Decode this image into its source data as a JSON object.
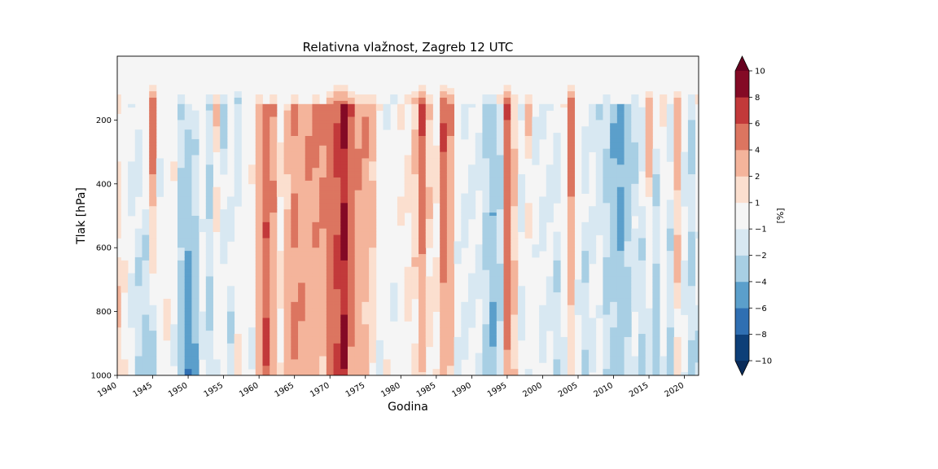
{
  "chart_data": {
    "type": "heatmap",
    "subtype": "filled-contour",
    "title": "Relativna vlažnost, Zagreb 12 UTC",
    "xlabel": "Godina",
    "ylabel": "Tlak [hPa]",
    "xlim": [
      1940,
      2022
    ],
    "ylim": [
      1000,
      0
    ],
    "y_inverted": true,
    "x_ticks": [
      "1940",
      "1945",
      "1950",
      "1955",
      "1960",
      "1965",
      "1970",
      "1975",
      "1980",
      "1985",
      "1990",
      "1995",
      "2000",
      "2005",
      "2010",
      "2015",
      "2020"
    ],
    "y_ticks": [
      "200",
      "400",
      "600",
      "800",
      "1000"
    ],
    "colorbar": {
      "label": "[%]",
      "levels": [
        -10,
        -8,
        -6,
        -4,
        -2,
        -1,
        1,
        2,
        4,
        6,
        8,
        10
      ],
      "tick_labels": [
        "−10",
        "−8",
        "−6",
        "−4",
        "−2",
        "−1",
        "1",
        "2",
        "4",
        "6",
        "8",
        "10"
      ],
      "colors": [
        "#0d3f78",
        "#2f6fb2",
        "#5b9fcb",
        "#a8cfe4",
        "#d8e8f2",
        "#f5f5f5",
        "#fbdfcf",
        "#f4b49b",
        "#dc7560",
        "#c2393a",
        "#840a25"
      ],
      "extend": "both",
      "under_color": "#0a2c5a",
      "over_color": "#67001f"
    },
    "upper_level_hpa": 150,
    "data_top_hpa": 50,
    "years": [
      1940,
      1941,
      1942,
      1943,
      1944,
      1945,
      1946,
      1947,
      1948,
      1949,
      1950,
      1951,
      1952,
      1953,
      1954,
      1955,
      1956,
      1957,
      1958,
      1959,
      1960,
      1961,
      1962,
      1963,
      1964,
      1965,
      1966,
      1967,
      1968,
      1969,
      1970,
      1971,
      1972,
      1973,
      1974,
      1975,
      1976,
      1977,
      1978,
      1979,
      1980,
      1981,
      1982,
      1983,
      1984,
      1985,
      1986,
      1987,
      1988,
      1989,
      1990,
      1991,
      1992,
      1993,
      1994,
      1995,
      1996,
      1997,
      1998,
      1999,
      2000,
      2001,
      2002,
      2003,
      2004,
      2005,
      2006,
      2007,
      2008,
      2009,
      2010,
      2011,
      2012,
      2013,
      2014,
      2015,
      2016,
      2017,
      2018,
      2019,
      2020,
      2021,
      2022
    ],
    "low_level_anomaly": [
      2,
      1,
      -1,
      -2,
      -3,
      -3,
      0,
      1,
      -1,
      -3,
      -6,
      -4,
      -1,
      -2,
      -1,
      0,
      -2,
      1,
      0,
      -1,
      3,
      6,
      3,
      1,
      3,
      4,
      4,
      3,
      2,
      2,
      5,
      6,
      8,
      4,
      3,
      2,
      1,
      -1,
      1,
      -1,
      0,
      1,
      1,
      2,
      1,
      1,
      3,
      2,
      -1,
      -1,
      -1,
      -1,
      -2,
      -4,
      -2,
      4,
      2,
      -1,
      -1,
      0,
      -1,
      -1,
      -2,
      -1,
      1,
      -1,
      -2,
      -1,
      0,
      -2,
      -2,
      -3,
      -2,
      -1,
      -2,
      -2,
      -3,
      -1,
      -2,
      1,
      -1,
      -2,
      -2
    ],
    "high_level_anomaly": [
      1,
      0,
      -1,
      -1,
      0,
      6,
      -1,
      0,
      1,
      -2,
      -2,
      -1,
      0,
      -2,
      2,
      -2,
      0,
      -2,
      0,
      1,
      3,
      5,
      4,
      1,
      2,
      4,
      3,
      4,
      5,
      5,
      5,
      6,
      8,
      6,
      4,
      4,
      3,
      1,
      -1,
      0,
      1,
      1,
      2,
      6,
      2,
      1,
      6,
      4,
      0,
      -1,
      -1,
      -1,
      -2,
      -3,
      -2,
      6,
      2,
      -1,
      2,
      -1,
      -1,
      -1,
      -1,
      1,
      6,
      0,
      -1,
      -1,
      -2,
      -2,
      -4,
      -5,
      -3,
      -2,
      -1,
      3,
      -1,
      1,
      -1,
      3,
      -1,
      -2,
      1
    ],
    "top_anomaly": [
      2,
      0,
      0,
      0,
      -1,
      6,
      -1,
      1,
      0,
      -2,
      -1,
      -1,
      0,
      -2,
      2,
      -2,
      1,
      -3,
      1,
      1,
      2,
      1,
      2,
      1,
      1,
      2,
      1,
      1,
      2,
      1,
      3,
      5,
      5,
      3,
      2,
      2,
      2,
      1,
      1,
      -2,
      1,
      2,
      3,
      6,
      2,
      1,
      6,
      4,
      1,
      -1,
      -1,
      -1,
      -2,
      -2,
      2,
      6,
      2,
      -1,
      2,
      -1,
      -1,
      -1,
      -1,
      -1,
      6,
      -1,
      -1,
      -1,
      -1,
      -2,
      -1,
      -1,
      -1,
      -2,
      -1,
      3,
      -1,
      2,
      -1,
      3,
      -1,
      -2,
      2
    ]
  }
}
